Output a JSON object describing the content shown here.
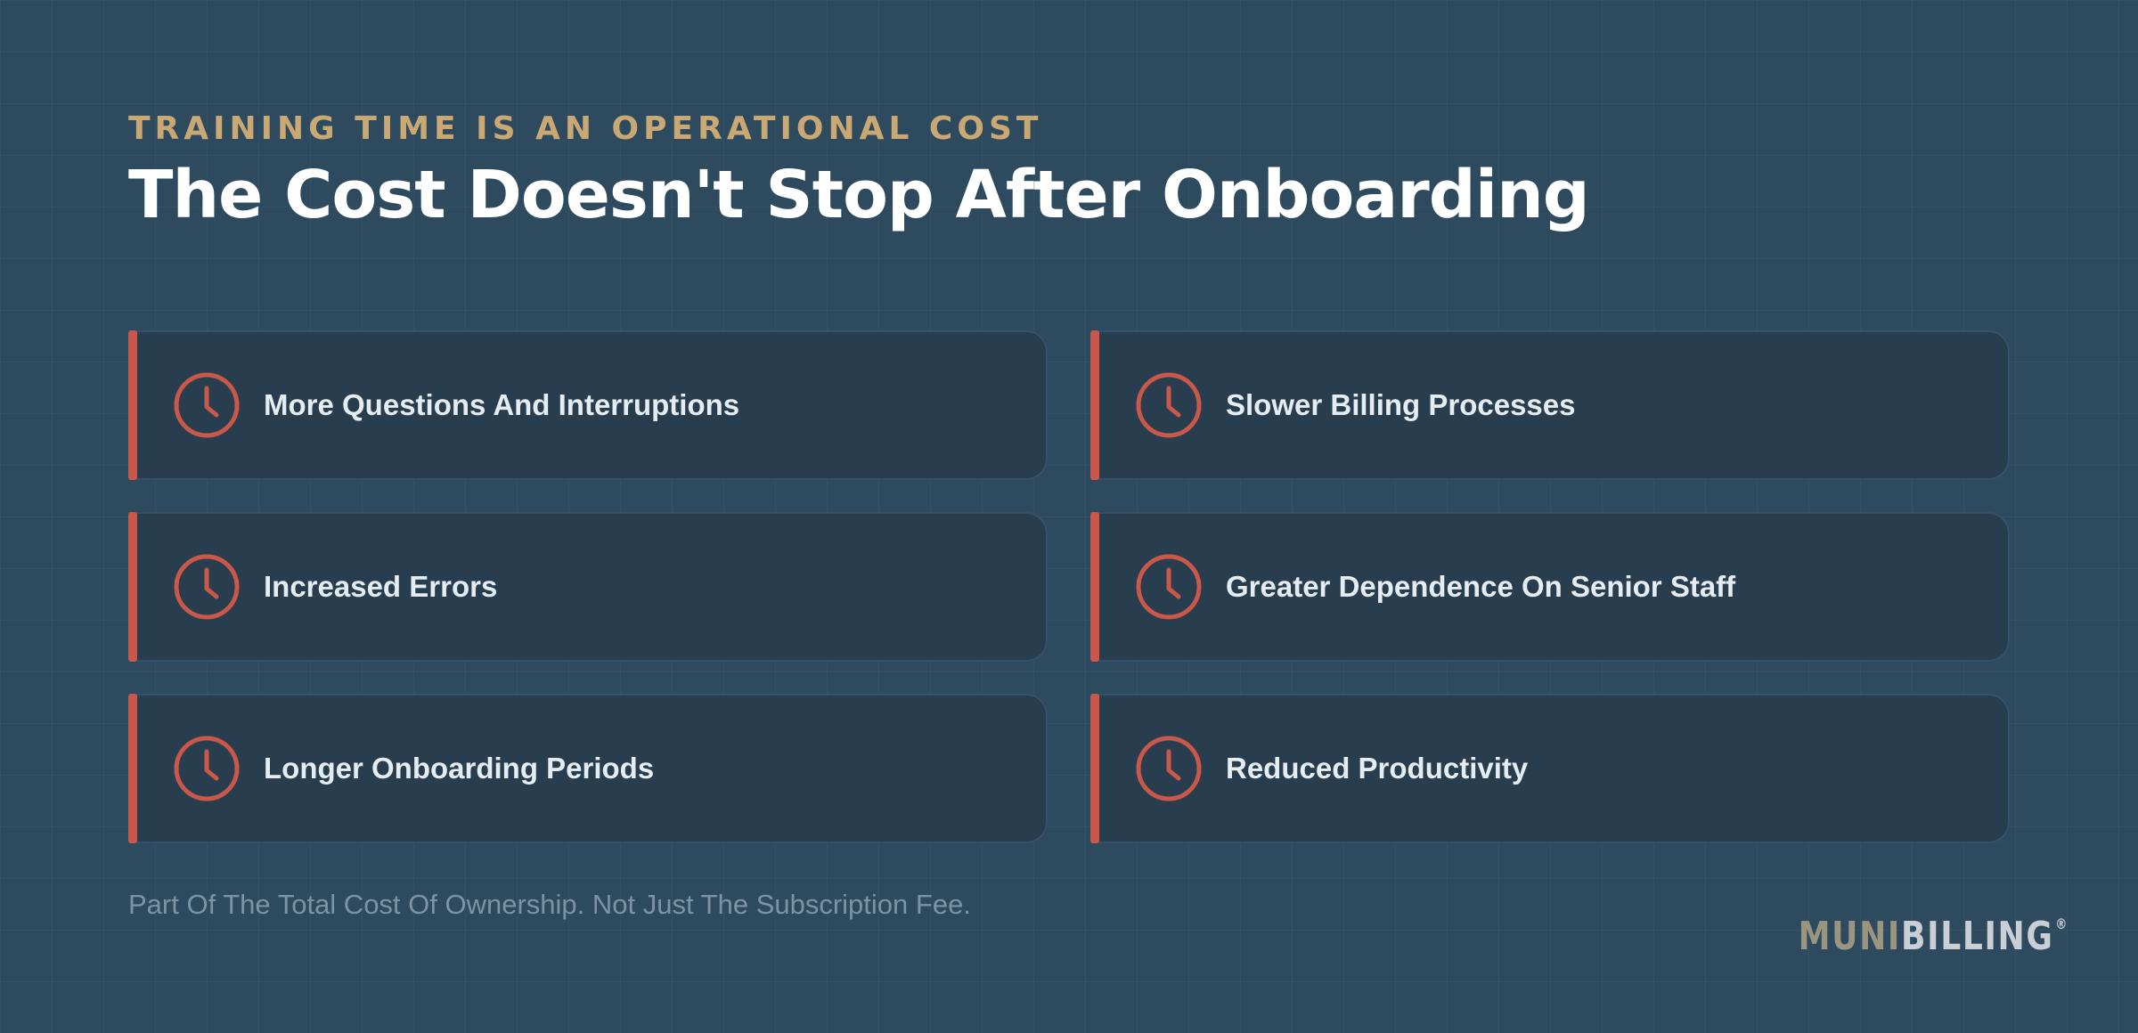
{
  "header": {
    "eyebrow": "TRAINING TIME IS AN OPERATIONAL COST",
    "title": "The Cost Doesn't Stop After Onboarding"
  },
  "items": [
    {
      "label": "More Questions And Interruptions",
      "icon": "clock-icon"
    },
    {
      "label": "Slower Billing Processes",
      "icon": "clock-icon"
    },
    {
      "label": "Increased Errors",
      "icon": "clock-icon"
    },
    {
      "label": "Greater Dependence On Senior Staff",
      "icon": "clock-icon"
    },
    {
      "label": "Longer Onboarding Periods",
      "icon": "clock-icon"
    },
    {
      "label": "Reduced Productivity",
      "icon": "clock-icon"
    }
  ],
  "footnote": "Part Of The Total Cost Of Ownership. Not Just The Subscription Fee.",
  "logo": {
    "part1": "MUNI",
    "part2": "BILLING",
    "registered": "®"
  },
  "colors": {
    "background": "#2d4a5e",
    "card": "#283e4e",
    "accent": "#c9574a",
    "eyebrow": "#c9a874",
    "title": "#ffffff",
    "footnote": "#7d93a4"
  }
}
